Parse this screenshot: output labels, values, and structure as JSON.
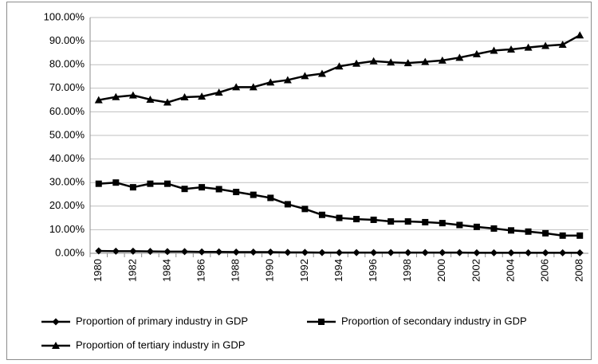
{
  "chart_data": {
    "type": "line",
    "categories": [
      "1980",
      null,
      "1982",
      null,
      "1984",
      null,
      "1986",
      null,
      "1988",
      null,
      "1990",
      null,
      "1992",
      null,
      "1994",
      null,
      "1996",
      null,
      "1998",
      null,
      "2000",
      null,
      "2002",
      null,
      "2004",
      null,
      "2006",
      null,
      "2008"
    ],
    "series": [
      {
        "name": "Proportion of primary industry in GDP",
        "color": "#000000",
        "marker": "diamond",
        "values": [
          1.0,
          0.9,
          0.9,
          0.8,
          0.7,
          0.7,
          0.6,
          0.6,
          0.5,
          0.5,
          0.5,
          0.4,
          0.4,
          0.3,
          0.3,
          0.3,
          0.3,
          0.3,
          0.3,
          0.3,
          0.3,
          0.3,
          0.2,
          0.2,
          0.2,
          0.2,
          0.2,
          0.2,
          0.2
        ]
      },
      {
        "name": "Proportion of secondary industry in GDP",
        "color": "#000000",
        "marker": "square",
        "values": [
          29.5,
          30,
          28,
          29.5,
          29.5,
          27.3,
          28,
          27.2,
          26,
          24.8,
          23.5,
          20.8,
          18.8,
          16.3,
          15,
          14.5,
          14.2,
          13.5,
          13.5,
          13.2,
          12.8,
          12,
          11.2,
          10.5,
          9.7,
          9.2,
          8.5,
          7.5,
          7.5
        ]
      },
      {
        "name": "Proportion of tertiary industry in GDP",
        "color": "#000000",
        "marker": "triangle",
        "values": [
          65,
          66.3,
          67,
          65.2,
          64,
          66.2,
          66.5,
          68.2,
          70.5,
          70.5,
          72.5,
          73.5,
          75.2,
          76.2,
          79.3,
          80.5,
          81.5,
          81,
          80.7,
          81.2,
          81.8,
          83,
          84.5,
          86,
          86.5,
          87.3,
          88,
          88.5,
          92.5
        ]
      }
    ],
    "ylim": [
      0,
      100
    ],
    "yticks": [
      {
        "value": 0,
        "label": "0.00%"
      },
      {
        "value": 10,
        "label": "10.00%"
      },
      {
        "value": 20,
        "label": "20.00%"
      },
      {
        "value": 30,
        "label": "30.00%"
      },
      {
        "value": 40,
        "label": "40.00%"
      },
      {
        "value": 50,
        "label": "50.00%"
      },
      {
        "value": 60,
        "label": "60.00%"
      },
      {
        "value": 70,
        "label": "70.00%"
      },
      {
        "value": 80,
        "label": "80.00%"
      },
      {
        "value": 90,
        "label": "90.00%"
      },
      {
        "value": 100,
        "label": "100.00%"
      }
    ],
    "grid": true
  }
}
